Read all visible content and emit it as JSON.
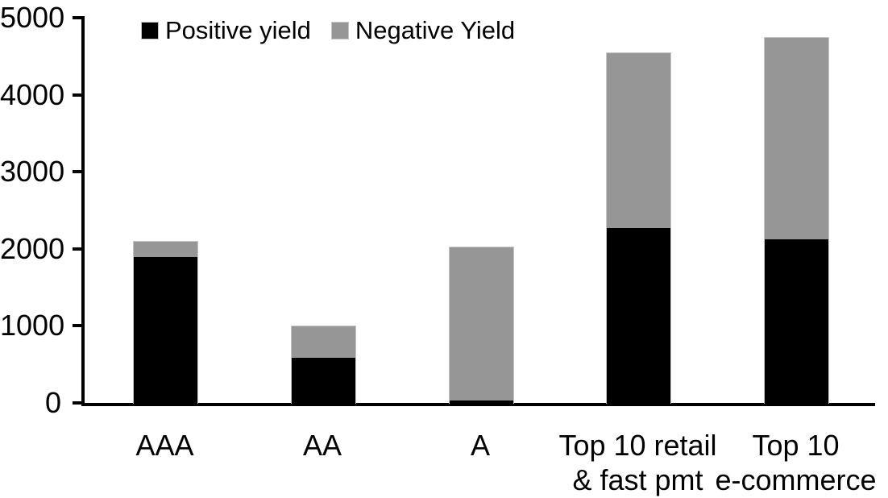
{
  "chart_data": {
    "type": "bar",
    "stacked": true,
    "title": "",
    "xlabel": "",
    "ylabel": "",
    "categories": [
      "AAA",
      "AA",
      "A",
      "Top 10 retail & fast pmt",
      "Top 10 e-commerce"
    ],
    "category_label_lines": [
      [
        "AAA"
      ],
      [
        "AA"
      ],
      [
        "A"
      ],
      [
        "Top 10 retail",
        "& fast pmt"
      ],
      [
        "Top 10",
        "e-commerce"
      ]
    ],
    "series": [
      {
        "name": "Positive yield",
        "color": "#000000",
        "values": [
          1900,
          600,
          40,
          2280,
          2130
        ]
      },
      {
        "name": "Negative Yield",
        "color": "#969696",
        "values": [
          200,
          400,
          1990,
          2270,
          2620
        ]
      }
    ],
    "totals": [
      2100,
      1000,
      2030,
      4550,
      4750
    ],
    "ylim": [
      0,
      5000
    ],
    "yticks": [
      0,
      1000,
      2000,
      3000,
      4000,
      5000
    ],
    "legend_position": "top",
    "grid": false,
    "axis_color": "#000000",
    "background_color": "#ffffff"
  }
}
